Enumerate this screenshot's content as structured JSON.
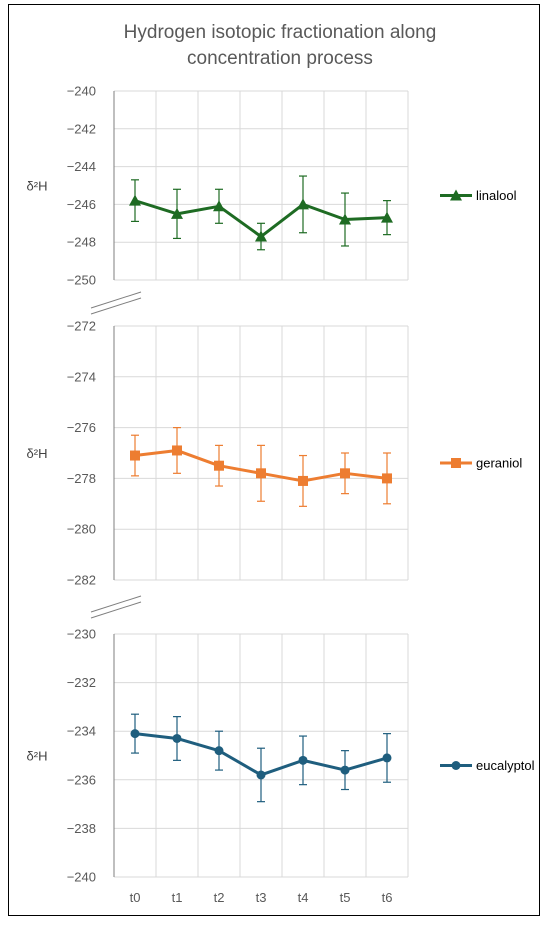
{
  "chart_data": {
    "type": "line",
    "title": "Hydrogen isotopic fractionation along concentration process",
    "title_lines": [
      "Hydrogen isotopic fractionation along",
      "concentration process"
    ],
    "categories": [
      "t0",
      "t1",
      "t2",
      "t3",
      "t4",
      "t5",
      "t6"
    ],
    "grid": true,
    "axis_break": true,
    "panels": [
      {
        "ylabel": "δ²H",
        "ylim": [
          -250,
          -240
        ],
        "yticks": [
          -240,
          -242,
          -244,
          -246,
          -248,
          -250
        ],
        "ytick_labels": [
          "−240",
          "−242",
          "−244",
          "−246",
          "−248",
          "−250"
        ],
        "legend_placement": "right",
        "series": {
          "name": "linalool",
          "color": "#1e6b23",
          "marker": "triangle",
          "values": [
            -245.8,
            -246.5,
            -246.1,
            -247.7,
            -246.0,
            -246.8,
            -246.7
          ],
          "errors": [
            1.1,
            1.3,
            0.9,
            0.7,
            1.5,
            1.4,
            0.9
          ]
        }
      },
      {
        "ylabel": "δ²H",
        "ylim": [
          -282,
          -272
        ],
        "yticks": [
          -272,
          -274,
          -276,
          -278,
          -280,
          -282
        ],
        "ytick_labels": [
          "−272",
          "−274",
          "−276",
          "−278",
          "−280",
          "−282"
        ],
        "legend_placement": "right",
        "series": {
          "name": "geraniol",
          "color": "#ed7d31",
          "marker": "square",
          "values": [
            -277.1,
            -276.9,
            -277.5,
            -277.8,
            -278.1,
            -277.8,
            -278.0
          ],
          "errors": [
            0.8,
            0.9,
            0.8,
            1.1,
            1.0,
            0.8,
            1.0
          ]
        }
      },
      {
        "ylabel": "δ²H",
        "ylim": [
          -240,
          -230
        ],
        "yticks": [
          -230,
          -232,
          -234,
          -236,
          -238,
          -240
        ],
        "ytick_labels": [
          "−230",
          "−232",
          "−234",
          "−236",
          "−238",
          "−240"
        ],
        "legend_placement": "right",
        "series": {
          "name": "eucalyptol",
          "color": "#1f5e7e",
          "marker": "circle",
          "values": [
            -234.1,
            -234.3,
            -234.8,
            -235.8,
            -235.2,
            -235.6,
            -235.1
          ],
          "errors": [
            0.8,
            0.9,
            0.8,
            1.1,
            1.0,
            0.8,
            1.0
          ]
        }
      }
    ]
  }
}
